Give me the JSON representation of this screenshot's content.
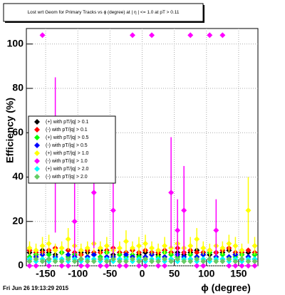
{
  "chart_data": {
    "type": "scatter",
    "title": "Lost wrt Geom for Primary Tracks vs ϕ (degree) at | η | <= 1.0 at pT > 0.11",
    "x_label": "ϕ (degree)",
    "y_label": "Efficiency (%)",
    "timestamp": "Fri Jun 26 19:13:29 2015",
    "xlim": [
      -180,
      180
    ],
    "ylim": [
      0,
      107
    ],
    "xticks": [
      -150,
      -100,
      -50,
      0,
      50,
      100,
      150
    ],
    "yticks": [
      0,
      20,
      40,
      60,
      80,
      100
    ],
    "grid": true,
    "legend": "left",
    "x": [
      -175,
      -165,
      -155,
      -145,
      -135,
      -125,
      -115,
      -105,
      -95,
      -85,
      -75,
      -65,
      -55,
      -45,
      -35,
      -25,
      -15,
      -5,
      5,
      15,
      25,
      35,
      45,
      55,
      65,
      75,
      85,
      95,
      105,
      115,
      125,
      135,
      145,
      155,
      165,
      175
    ],
    "series": [
      {
        "name": "(+) with pT/|q| > 0.1",
        "color": "#000000",
        "values": [
          6,
          5,
          7,
          6,
          5,
          6,
          7,
          5,
          6,
          6,
          5,
          7,
          6,
          5,
          6,
          6,
          7,
          5,
          6,
          6,
          5,
          7,
          6,
          6,
          5,
          6,
          7,
          6,
          5,
          6,
          6,
          7,
          5,
          6,
          6,
          5
        ]
      },
      {
        "name": "(-) with pT/|q| > 0.1",
        "color": "#ff0000",
        "values": [
          7,
          6,
          6,
          7,
          8,
          6,
          7,
          6,
          5,
          7,
          6,
          6,
          7,
          8,
          6,
          6,
          7,
          6,
          7,
          6,
          6,
          7,
          6,
          8,
          6,
          7,
          6,
          6,
          7,
          6,
          7,
          8,
          6,
          6,
          7,
          6
        ]
      },
      {
        "name": "(+) with pT/|q| > 0.5",
        "color": "#00ff00",
        "values": [
          4,
          5,
          3,
          5,
          4,
          6,
          4,
          5,
          3,
          4,
          5,
          4,
          6,
          3,
          5,
          4,
          5,
          4,
          3,
          5,
          4,
          6,
          5,
          4,
          3,
          5,
          4,
          5,
          6,
          4,
          5,
          3,
          4,
          5,
          4,
          5
        ]
      },
      {
        "name": "(-) with pT/|q| > 0.5",
        "color": "#0000ff",
        "values": [
          3,
          4,
          5,
          3,
          4,
          3,
          5,
          4,
          3,
          4,
          5,
          3,
          4,
          4,
          3,
          5,
          4,
          3,
          4,
          5,
          3,
          4,
          3,
          5,
          4,
          3,
          4,
          5,
          3,
          4,
          3,
          4,
          5,
          3,
          4,
          3
        ]
      },
      {
        "name": "(+) with pT/|q| > 1.0",
        "color": "#ffff00",
        "values": [
          8,
          7,
          9,
          10,
          7,
          8,
          12,
          9,
          7,
          8,
          10,
          8,
          9,
          7,
          8,
          11,
          8,
          9,
          10,
          8,
          7,
          9,
          8,
          10,
          8,
          9,
          12,
          8,
          7,
          9,
          8,
          10,
          9,
          7,
          25,
          9
        ],
        "errors": [
          3,
          3,
          4,
          4,
          3,
          3,
          5,
          4,
          3,
          3,
          4,
          3,
          4,
          3,
          3,
          5,
          3,
          4,
          4,
          3,
          3,
          4,
          3,
          4,
          3,
          4,
          5,
          3,
          3,
          4,
          3,
          4,
          4,
          3,
          15,
          4
        ]
      },
      {
        "name": "(-) with pT/|q| > 1.0",
        "color": "#ff00ff",
        "values": [
          0,
          0,
          104,
          0,
          50,
          0,
          0,
          20,
          0,
          0,
          33,
          0,
          0,
          25,
          0,
          0,
          104,
          0,
          0,
          104,
          0,
          0,
          33,
          16,
          25,
          104,
          0,
          0,
          104,
          16,
          104,
          0,
          0,
          0,
          0,
          0
        ],
        "errors": [
          0,
          0,
          0,
          0,
          35,
          0,
          0,
          18,
          0,
          0,
          25,
          0,
          0,
          20,
          0,
          0,
          0,
          0,
          0,
          0,
          0,
          0,
          25,
          14,
          20,
          0,
          0,
          0,
          0,
          14,
          0,
          0,
          0,
          0,
          0,
          0
        ]
      },
      {
        "name": "(+) with pT/|q| > 2.0",
        "color": "#00ffff",
        "values": [
          3,
          2,
          3,
          2,
          3,
          3,
          2,
          3,
          2,
          3,
          3,
          2,
          3,
          2,
          3,
          3,
          2,
          3,
          2,
          3,
          3,
          2,
          3,
          2,
          3,
          3,
          2,
          3,
          2,
          3,
          3,
          2,
          3,
          2,
          3,
          3
        ]
      },
      {
        "name": "(-) with pT/|q| > 2.0",
        "color": "#66cc66",
        "values": [
          2,
          3,
          2,
          3,
          2,
          2,
          3,
          2,
          3,
          2,
          2,
          3,
          2,
          3,
          2,
          2,
          3,
          2,
          3,
          2,
          2,
          3,
          2,
          3,
          2,
          2,
          3,
          2,
          3,
          2,
          2,
          3,
          2,
          3,
          2,
          2
        ]
      }
    ]
  }
}
